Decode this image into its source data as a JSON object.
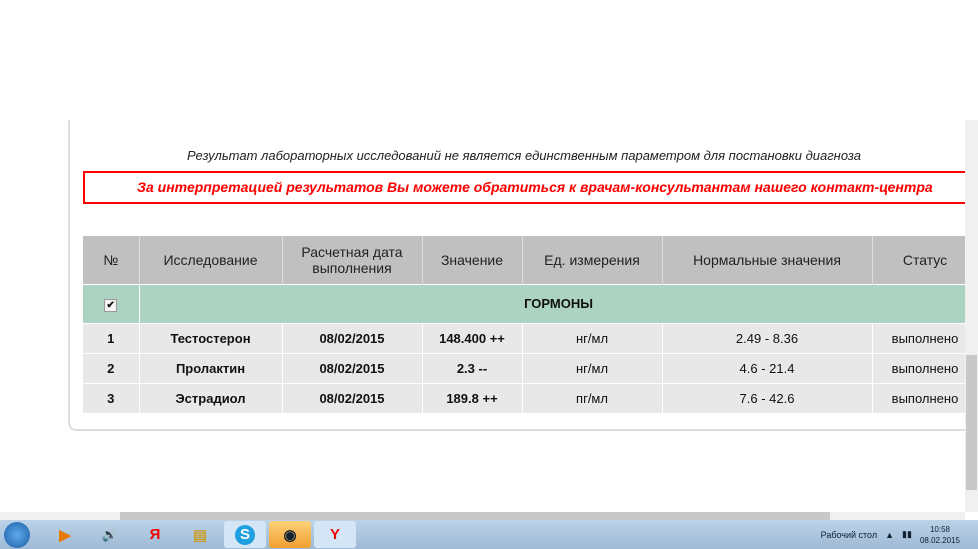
{
  "notice": "Результат лабораторных исследований не является единственным параметром для постановки диагноза",
  "warning": "За интерпретацией результатов Вы можете обратиться к врачам-консультантам нашего контакт-центра",
  "table": {
    "headers": [
      "№",
      "Исследование",
      "Расчетная дата выполнения",
      "Значение",
      "Ед. измерения",
      "Нормальные значения",
      "Статус"
    ],
    "group": {
      "label": "ГОРМОНЫ",
      "checked": true,
      "check_glyph": "✔"
    },
    "rows": [
      {
        "n": "1",
        "name": "Тестостерон",
        "date": "08/02/2015",
        "value": "148.400 ++",
        "unit": "нг/мл",
        "norm": "2.49 - 8.36",
        "status": "выполнено"
      },
      {
        "n": "2",
        "name": "Пролактин",
        "date": "08/02/2015",
        "value": "2.3 --",
        "unit": "нг/мл",
        "norm": "4.6 - 21.4",
        "status": "выполнено"
      },
      {
        "n": "3",
        "name": "Эстрадиол",
        "date": "08/02/2015",
        "value": "189.8 ++",
        "unit": "пг/мл",
        "norm": "7.6 - 42.6",
        "status": "выполнено"
      }
    ]
  },
  "taskbar": {
    "apps": [
      {
        "icon": "media-player-icon",
        "glyph": "▶"
      },
      {
        "icon": "volume-icon",
        "glyph": "🔊"
      },
      {
        "icon": "yandex-icon",
        "glyph": "Я"
      },
      {
        "icon": "folder-icon",
        "glyph": "▤"
      },
      {
        "icon": "skype-icon",
        "glyph": "S"
      },
      {
        "icon": "steam-icon",
        "glyph": "◉"
      },
      {
        "icon": "yandex-browser-icon",
        "glyph": "Y"
      }
    ],
    "desktop_label": "Рабочий стол",
    "time": "10:58",
    "date": "08.02.2015"
  }
}
